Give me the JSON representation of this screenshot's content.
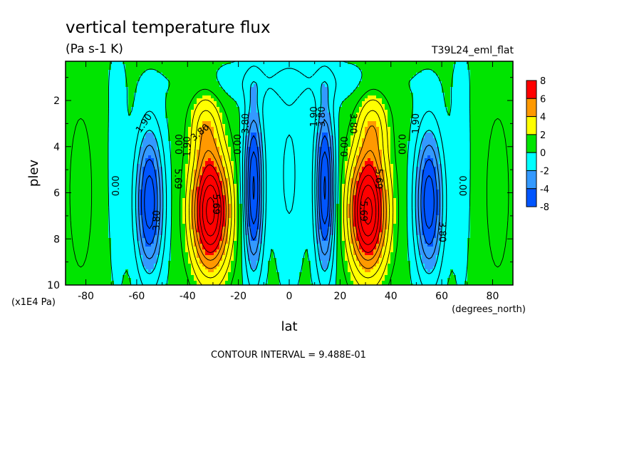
{
  "chart_data": {
    "type": "heatmap",
    "title": "vertical temperature flux",
    "subtitle": "(Pa s-1 K)",
    "dataset_label": "T39L24_eml_flat",
    "xlabel": "lat",
    "xunits": "(degrees_north)",
    "ylabel": "plev",
    "yunits": "(x1E4 Pa)",
    "xlim": [
      -88,
      88
    ],
    "ylim": [
      0.3,
      10
    ],
    "y_inverted": true,
    "x_ticks": [
      -80,
      -60,
      -40,
      -20,
      0,
      20,
      40,
      60,
      80
    ],
    "x_tick_labels": [
      "-80",
      "-60",
      "-40",
      "-20",
      "0",
      "20",
      "40",
      "60",
      "80"
    ],
    "y_ticks": [
      2,
      4,
      6,
      8,
      10
    ],
    "y_tick_labels": [
      "2",
      "4",
      "6",
      "8",
      "10"
    ],
    "footer": "CONTOUR INTERVAL = 9.488E-01",
    "colorbar": {
      "placement": "right",
      "levels": [
        "8",
        "6",
        "4",
        "2",
        "0",
        "-2",
        "-4",
        "-8"
      ],
      "colors": [
        "#ff0000",
        "#ff9900",
        "#ffff00",
        "#00e400",
        "#00ffff",
        "#3399ff",
        "#0055ff"
      ]
    },
    "contour_labels": [
      {
        "text": "0.00",
        "lat": -68,
        "p": 5.7,
        "rot": -90
      },
      {
        "text": "1.90",
        "lat": -57,
        "p": 3.0,
        "rot": -55
      },
      {
        "text": "3.80",
        "lat": -52,
        "p": 7.2,
        "rot": -90
      },
      {
        "text": "0.00",
        "lat": -43,
        "p": 3.9,
        "rot": -90
      },
      {
        "text": "1.90",
        "lat": -40,
        "p": 4.0,
        "rot": -90
      },
      {
        "text": "3.80",
        "lat": -35,
        "p": 3.4,
        "rot": -40
      },
      {
        "text": "5.69",
        "lat": -29,
        "p": 6.5,
        "rot": 90
      },
      {
        "text": "5.69",
        "lat": -44,
        "p": 5.4,
        "rot": 90
      },
      {
        "text": "0.00",
        "lat": -20,
        "p": 3.9,
        "rot": -90
      },
      {
        "text": "3.80",
        "lat": -17,
        "p": 3.0,
        "rot": -90
      },
      {
        "text": "1.90",
        "lat": 10,
        "p": 2.7,
        "rot": -90
      },
      {
        "text": "3.80",
        "lat": 13,
        "p": 2.7,
        "rot": -90
      },
      {
        "text": "0.00",
        "lat": 22,
        "p": 4.0,
        "rot": -90
      },
      {
        "text": "3.80",
        "lat": 25,
        "p": 3.0,
        "rot": 90
      },
      {
        "text": "5.69",
        "lat": 35,
        "p": 5.4,
        "rot": 90
      },
      {
        "text": "5.69",
        "lat": 29,
        "p": 6.8,
        "rot": 90
      },
      {
        "text": "0.00",
        "lat": 44,
        "p": 3.9,
        "rot": 90
      },
      {
        "text": "1.90",
        "lat": 50,
        "p": 3.0,
        "rot": -90
      },
      {
        "text": "3.80",
        "lat": 60,
        "p": 7.7,
        "rot": 90
      },
      {
        "text": "0.00",
        "lat": 68,
        "p": 5.7,
        "rot": 90
      }
    ]
  }
}
